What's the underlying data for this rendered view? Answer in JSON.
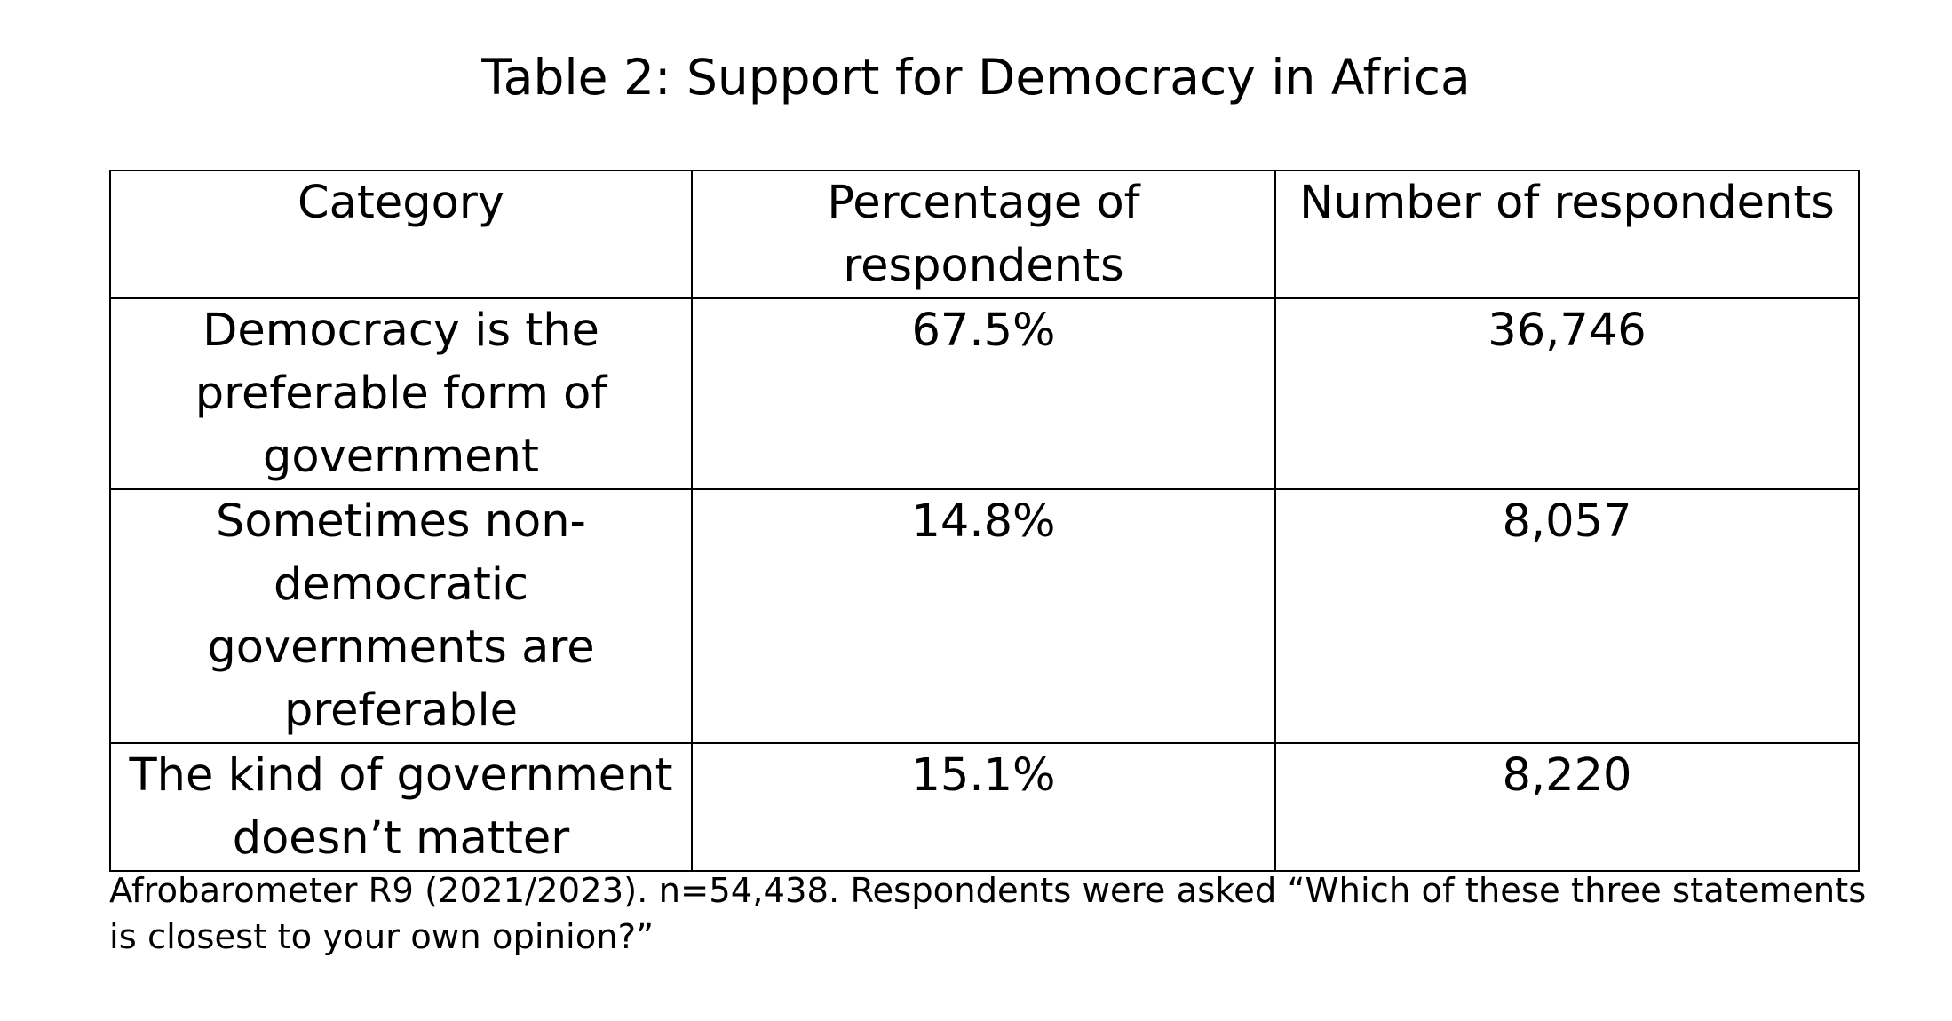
{
  "title": "Table 2: Support for Democracy in Africa",
  "table": {
    "headers": [
      "Category",
      "Percentage of respondents",
      "Number of respondents"
    ],
    "rows": [
      {
        "category": "Democracy is the preferable form of government",
        "percentage": "67.5%",
        "number": "36,746"
      },
      {
        "category": "Sometimes non-democratic governments are preferable",
        "percentage": "14.8%",
        "number": "8,057"
      },
      {
        "category": "The kind of government doesn’t matter",
        "percentage": "15.1%",
        "number": "8,220"
      }
    ]
  },
  "note": {
    "line1": "Afrobarometer R9 (2021/2023). n=54,438. Respondents were asked “Which of these three statements",
    "line2": "is closest to your own opinion?”"
  }
}
